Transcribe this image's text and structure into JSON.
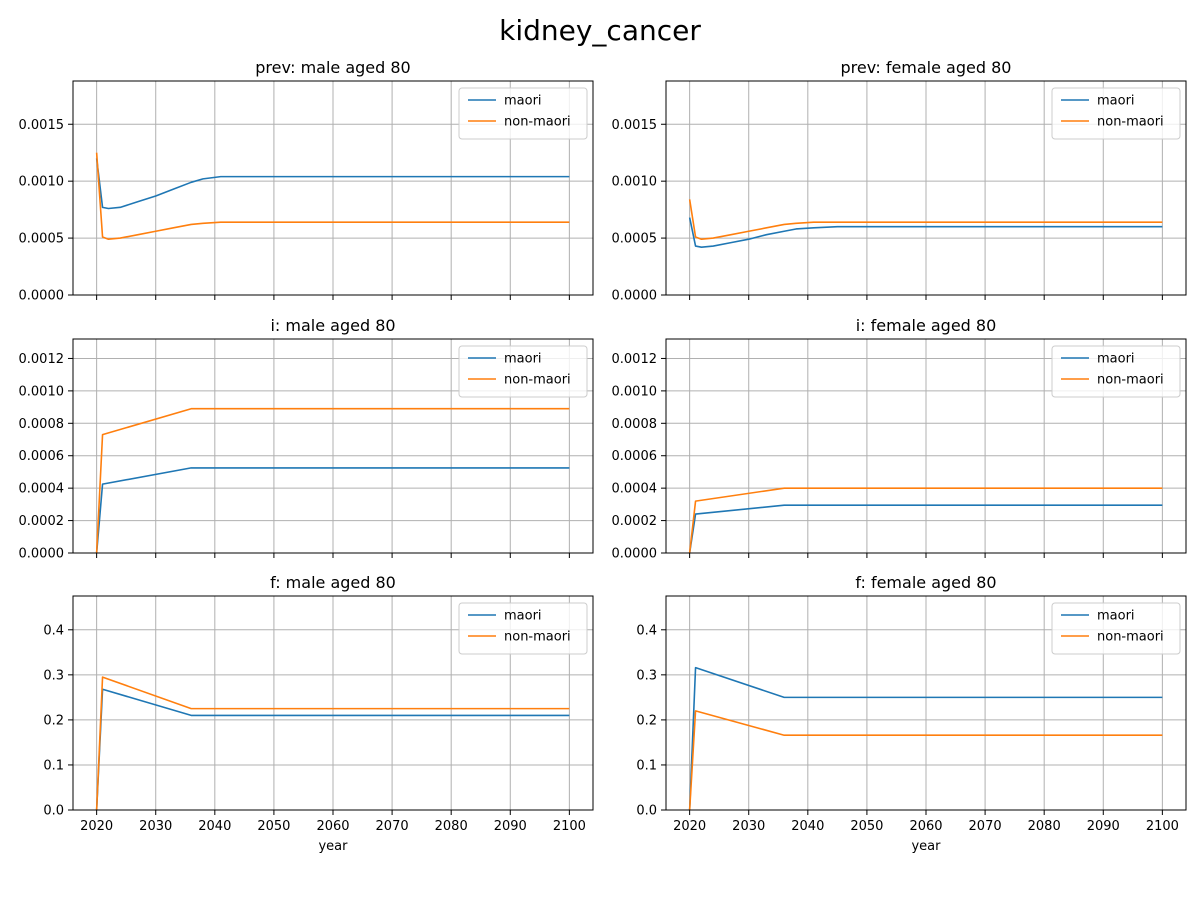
{
  "chart_data": {
    "suptitle": "kidney_cancer",
    "colors": {
      "maori": "#1f77b4",
      "non-maori": "#ff7f0e"
    },
    "legend_placement": "top-right",
    "grid": true,
    "xlabel": "year",
    "xticks": [
      2020,
      2030,
      2040,
      2050,
      2060,
      2070,
      2080,
      2090,
      2100
    ],
    "xlim": [
      2016,
      2104
    ],
    "panels": [
      {
        "type": "line",
        "title": "prev: male aged 80",
        "ylim": [
          0,
          0.00188
        ],
        "yticks": [
          "0.0000",
          "0.0005",
          "0.0010",
          "0.0015"
        ],
        "yticks_values": [
          0,
          0.0005,
          0.001,
          0.0015
        ],
        "show_xticklabels": false,
        "series": [
          {
            "name": "maori",
            "color": "#1f77b4",
            "x": [
              2020,
              2021,
              2022,
              2024,
              2027,
              2030,
              2033,
              2036,
              2038,
              2041,
              2045,
              2100
            ],
            "y": [
              0.0012,
              0.00077,
              0.00076,
              0.00077,
              0.00082,
              0.00087,
              0.00093,
              0.00099,
              0.00102,
              0.00104,
              0.00104,
              0.00104
            ]
          },
          {
            "name": "non-maori",
            "color": "#ff7f0e",
            "x": [
              2020,
              2021,
              2022,
              2024,
              2027,
              2030,
              2033,
              2036,
              2038,
              2041,
              2045,
              2100
            ],
            "y": [
              0.00125,
              0.00051,
              0.00049,
              0.0005,
              0.00053,
              0.00056,
              0.00059,
              0.00062,
              0.00063,
              0.00064,
              0.00064,
              0.00064
            ]
          }
        ]
      },
      {
        "type": "line",
        "title": "prev: female aged 80",
        "ylim": [
          0,
          0.00188
        ],
        "yticks": [
          "0.0000",
          "0.0005",
          "0.0010",
          "0.0015"
        ],
        "yticks_values": [
          0,
          0.0005,
          0.001,
          0.0015
        ],
        "show_xticklabels": false,
        "series": [
          {
            "name": "maori",
            "color": "#1f77b4",
            "x": [
              2020,
              2021,
              2022,
              2024,
              2027,
              2030,
              2033,
              2036,
              2038,
              2041,
              2045,
              2100
            ],
            "y": [
              0.00068,
              0.00043,
              0.00042,
              0.00043,
              0.00046,
              0.00049,
              0.00053,
              0.00056,
              0.00058,
              0.00059,
              0.0006,
              0.0006
            ]
          },
          {
            "name": "non-maori",
            "color": "#ff7f0e",
            "x": [
              2020,
              2021,
              2022,
              2024,
              2027,
              2030,
              2033,
              2036,
              2038,
              2041,
              2045,
              2100
            ],
            "y": [
              0.00084,
              0.00051,
              0.00049,
              0.0005,
              0.00053,
              0.00056,
              0.00059,
              0.00062,
              0.00063,
              0.00064,
              0.00064,
              0.00064
            ]
          }
        ]
      },
      {
        "type": "line",
        "title": "i: male aged 80",
        "ylim": [
          0,
          0.00132
        ],
        "yticks": [
          "0.0000",
          "0.0002",
          "0.0004",
          "0.0006",
          "0.0008",
          "0.0010",
          "0.0012"
        ],
        "yticks_values": [
          0,
          0.0002,
          0.0004,
          0.0006,
          0.0008,
          0.001,
          0.0012
        ],
        "show_xticklabels": false,
        "series": [
          {
            "name": "maori",
            "color": "#1f77b4",
            "x": [
              2020,
              2021,
              2036,
              2100
            ],
            "y": [
              0,
              0.000425,
              0.000525,
              0.000525
            ]
          },
          {
            "name": "non-maori",
            "color": "#ff7f0e",
            "x": [
              2020,
              2021,
              2036,
              2100
            ],
            "y": [
              0,
              0.00073,
              0.00089,
              0.00089
            ]
          }
        ]
      },
      {
        "type": "line",
        "title": "i: female aged 80",
        "ylim": [
          0,
          0.00132
        ],
        "yticks": [
          "0.0000",
          "0.0002",
          "0.0004",
          "0.0006",
          "0.0008",
          "0.0010",
          "0.0012"
        ],
        "yticks_values": [
          0,
          0.0002,
          0.0004,
          0.0006,
          0.0008,
          0.001,
          0.0012
        ],
        "show_xticklabels": false,
        "series": [
          {
            "name": "maori",
            "color": "#1f77b4",
            "x": [
              2020,
              2021,
              2036,
              2100
            ],
            "y": [
              0,
              0.00024,
              0.000295,
              0.000295
            ]
          },
          {
            "name": "non-maori",
            "color": "#ff7f0e",
            "x": [
              2020,
              2021,
              2036,
              2100
            ],
            "y": [
              0,
              0.00032,
              0.0004,
              0.0004
            ]
          }
        ]
      },
      {
        "type": "line",
        "title": "f: male aged 80",
        "ylim": [
          0,
          0.475
        ],
        "yticks": [
          "0.0",
          "0.1",
          "0.2",
          "0.3",
          "0.4"
        ],
        "yticks_values": [
          0,
          0.1,
          0.2,
          0.3,
          0.4
        ],
        "show_xticklabels": true,
        "series": [
          {
            "name": "maori",
            "color": "#1f77b4",
            "x": [
              2020,
              2021,
              2036,
              2100
            ],
            "y": [
              0,
              0.268,
              0.21,
              0.21
            ]
          },
          {
            "name": "non-maori",
            "color": "#ff7f0e",
            "x": [
              2020,
              2021,
              2036,
              2100
            ],
            "y": [
              0,
              0.295,
              0.225,
              0.225
            ]
          }
        ]
      },
      {
        "type": "line",
        "title": "f: female aged 80",
        "ylim": [
          0,
          0.475
        ],
        "yticks": [
          "0.0",
          "0.1",
          "0.2",
          "0.3",
          "0.4"
        ],
        "yticks_values": [
          0,
          0.1,
          0.2,
          0.3,
          0.4
        ],
        "show_xticklabels": true,
        "series": [
          {
            "name": "maori",
            "color": "#1f77b4",
            "x": [
              2020,
              2021,
              2036,
              2100
            ],
            "y": [
              0,
              0.316,
              0.25,
              0.25
            ]
          },
          {
            "name": "non-maori",
            "color": "#ff7f0e",
            "x": [
              2020,
              2021,
              2036,
              2100
            ],
            "y": [
              0,
              0.22,
              0.166,
              0.166
            ]
          }
        ]
      }
    ]
  }
}
